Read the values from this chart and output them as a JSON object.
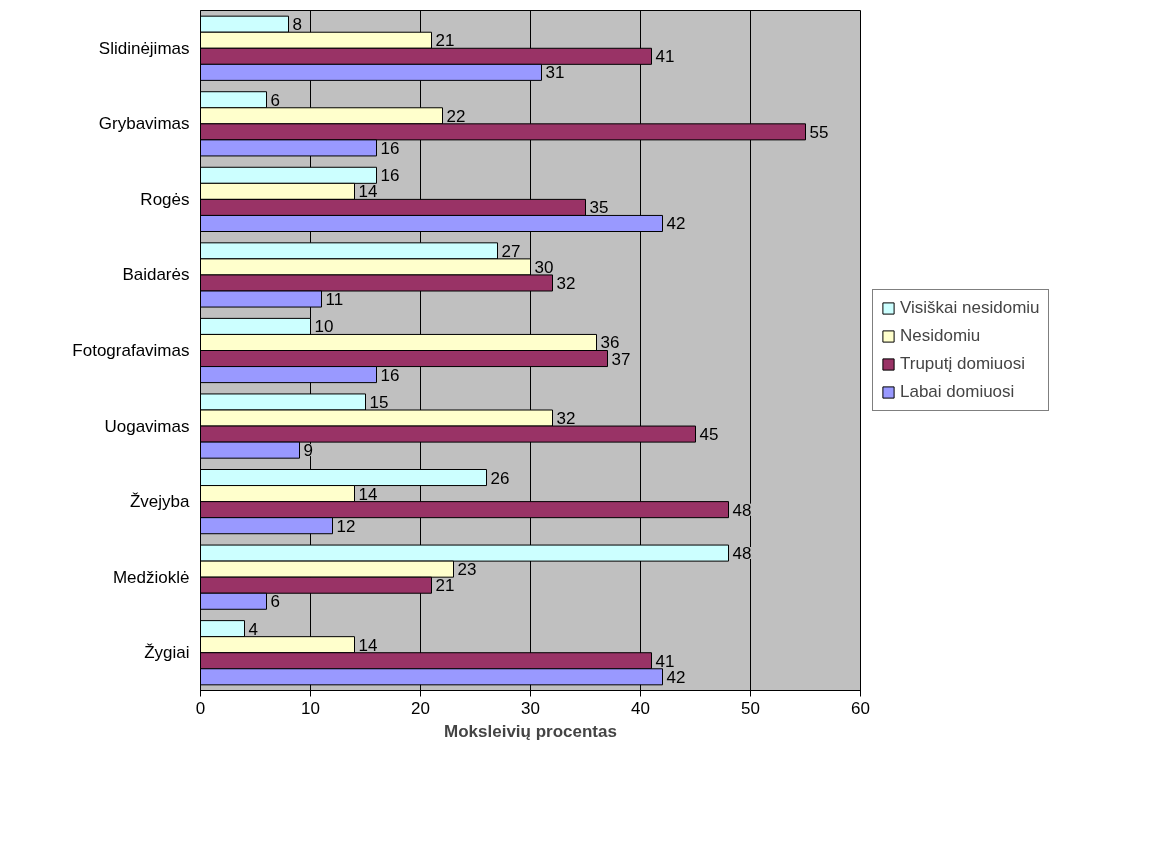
{
  "chart_data": {
    "type": "bar",
    "orientation": "horizontal",
    "xlabel": "Moksleivių procentas",
    "categories": [
      "Slidinėjimas",
      "Grybavimas",
      "Rogės",
      "Baidarės",
      "Fotografavimas",
      "Uogavimas",
      "Žvejyba",
      "Medžioklė",
      "Žygiai"
    ],
    "series": [
      {
        "name": "Visiškai nesidomiu",
        "color": "#ccffff",
        "values": [
          8,
          6,
          16,
          27,
          10,
          15,
          26,
          48,
          4
        ]
      },
      {
        "name": "Nesidomiu",
        "color": "#ffffcc",
        "values": [
          21,
          22,
          14,
          30,
          36,
          32,
          14,
          23,
          14
        ]
      },
      {
        "name": "Truputį domiuosi",
        "color": "#993366",
        "values": [
          41,
          55,
          35,
          32,
          37,
          45,
          48,
          21,
          41
        ]
      },
      {
        "name": "Labai domiuosi",
        "color": "#9999ff",
        "values": [
          31,
          16,
          42,
          11,
          16,
          9,
          12,
          6,
          42
        ]
      }
    ],
    "xlim": [
      0,
      60
    ],
    "xticks": [
      0,
      10,
      20,
      30,
      40,
      50,
      60
    ],
    "grid": "x",
    "legend": "right",
    "data_labels": true
  }
}
